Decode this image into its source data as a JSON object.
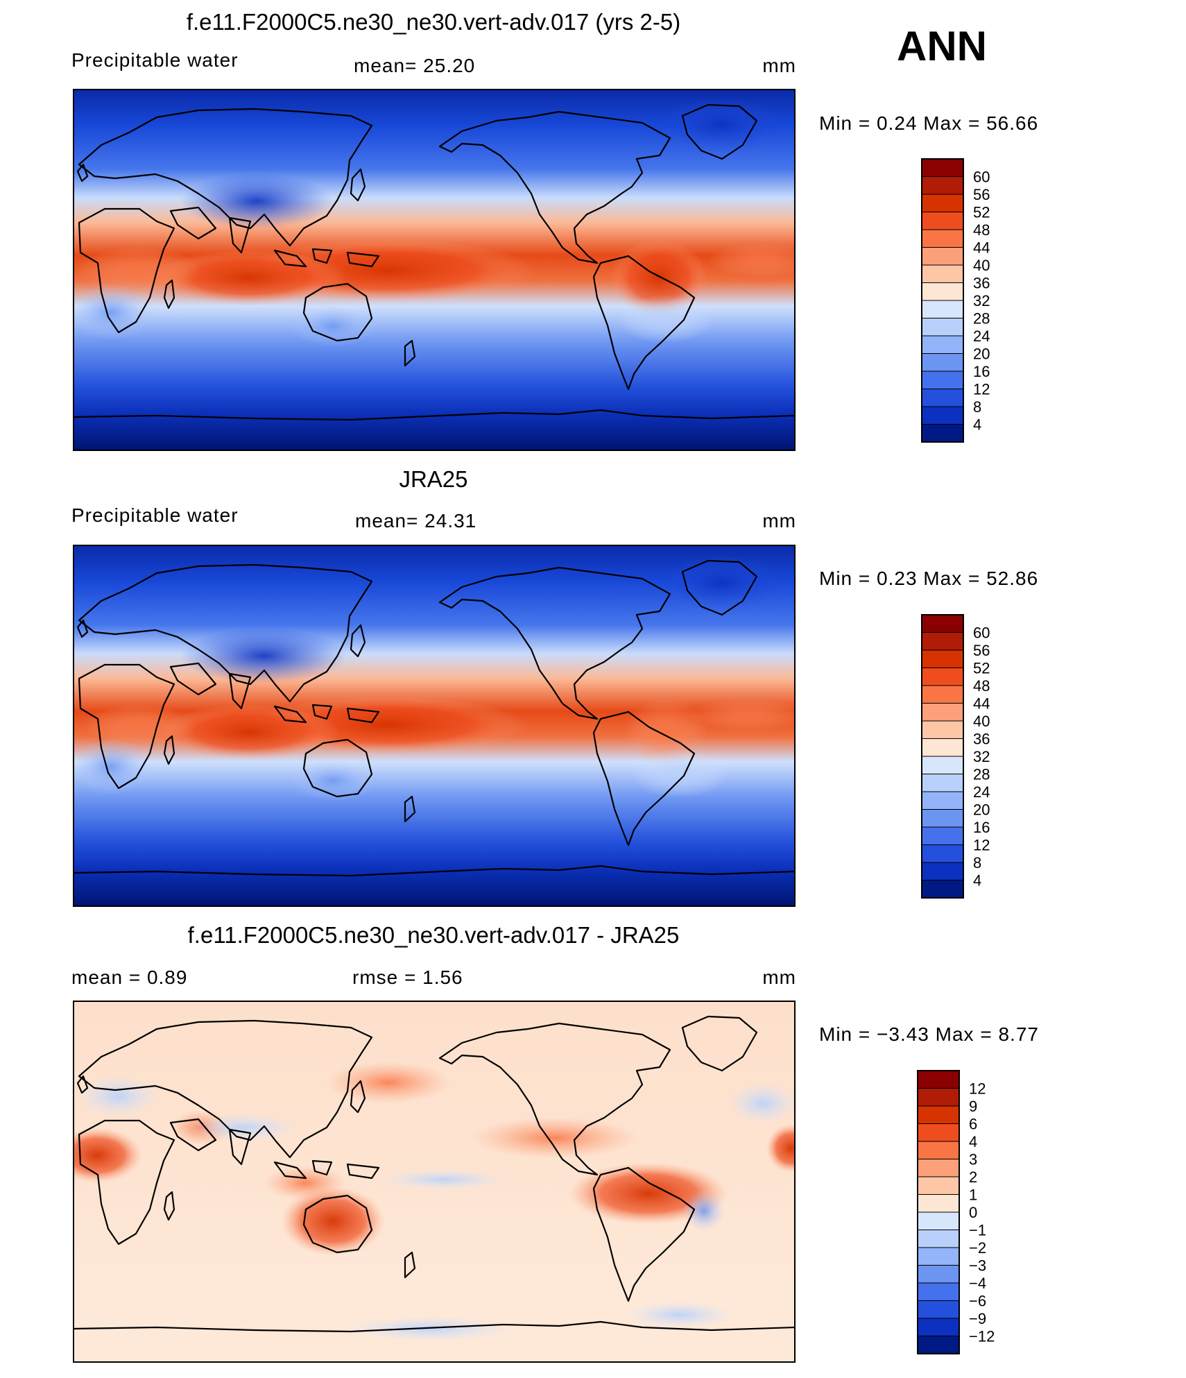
{
  "season": "ANN",
  "panels": [
    {
      "id": "model",
      "title": "f.e11.F2000C5.ne30_ne30.vert-adv.017 (yrs 2-5)",
      "left_label": "Precipitable  water",
      "center_label": "mean=   25.20",
      "right_label": "mm",
      "minmax": "Min  =     0.24  Max  =     56.66",
      "colorbar_labels": [
        "60",
        "56",
        "52",
        "48",
        "44",
        "40",
        "36",
        "32",
        "28",
        "24",
        "20",
        "16",
        "12",
        "8",
        "4"
      ],
      "colorbar_colors": [
        "#8b0000",
        "#b01c05",
        "#d63300",
        "#ef4d1e",
        "#f97545",
        "#fca079",
        "#fdc6a7",
        "#fee6d4",
        "#d8e6fc",
        "#b8d0fb",
        "#93b4f8",
        "#6c95f2",
        "#4671ec",
        "#2450de",
        "#0c31c0",
        "#001a85"
      ]
    },
    {
      "id": "obs",
      "title": "JRA25",
      "left_label": "Precipitable  water",
      "center_label": "mean=   24.31",
      "right_label": "mm",
      "minmax": "Min  =     0.23  Max  =     52.86",
      "colorbar_labels": [
        "60",
        "56",
        "52",
        "48",
        "44",
        "40",
        "36",
        "32",
        "28",
        "24",
        "20",
        "16",
        "12",
        "8",
        "4"
      ],
      "colorbar_colors": [
        "#8b0000",
        "#b01c05",
        "#d63300",
        "#ef4d1e",
        "#f97545",
        "#fca079",
        "#fdc6a7",
        "#fee6d4",
        "#d8e6fc",
        "#b8d0fb",
        "#93b4f8",
        "#6c95f2",
        "#4671ec",
        "#2450de",
        "#0c31c0",
        "#001a85"
      ]
    },
    {
      "id": "diff",
      "title": "f.e11.F2000C5.ne30_ne30.vert-adv.017 - JRA25",
      "left_label": "mean  =     0.89",
      "center_label": "rmse  =     1.56",
      "right_label": "mm",
      "minmax": "Min  =   −3.43  Max  =     8.77",
      "colorbar_labels": [
        "12",
        "9",
        "6",
        "4",
        "3",
        "2",
        "1",
        "0",
        "−1",
        "−2",
        "−3",
        "−4",
        "−6",
        "−9",
        "−12"
      ],
      "colorbar_colors": [
        "#8b0000",
        "#b01c05",
        "#d63300",
        "#ef4d1e",
        "#f97545",
        "#fca079",
        "#fdc6a7",
        "#fee6d4",
        "#d8e6fc",
        "#b8d0fb",
        "#93b4f8",
        "#6c95f2",
        "#4671ec",
        "#2450de",
        "#0c31c0",
        "#001a85"
      ]
    }
  ]
}
